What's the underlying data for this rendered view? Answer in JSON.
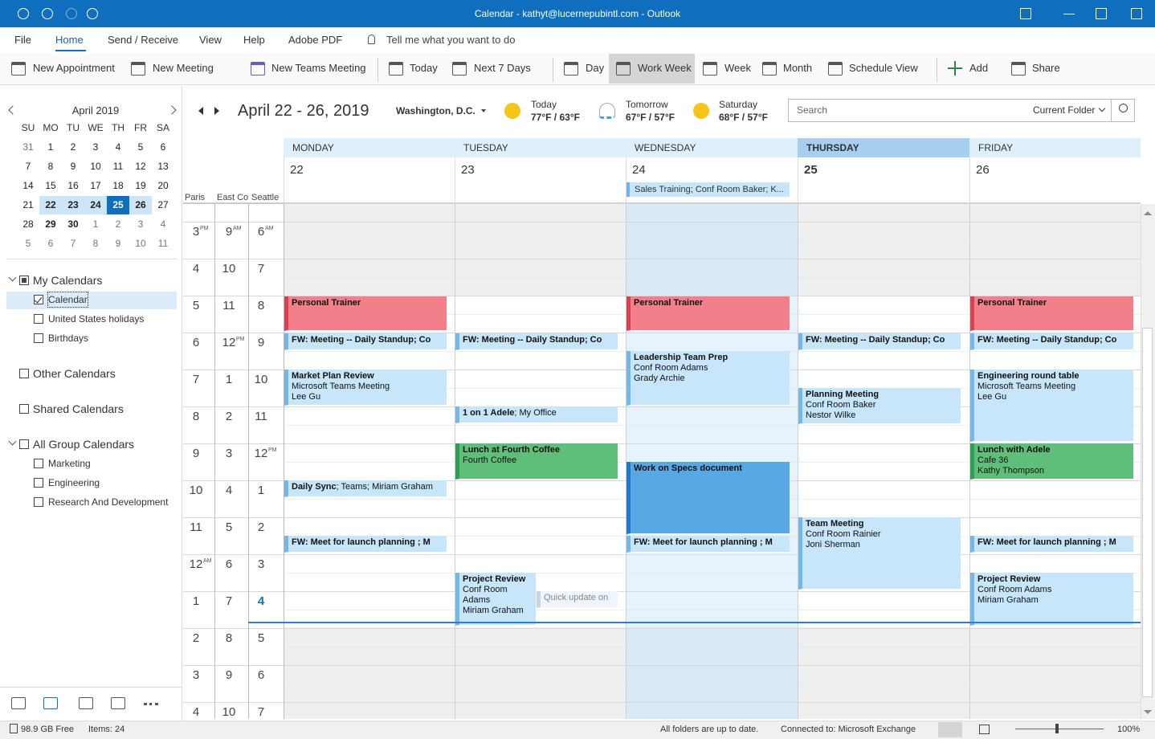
{
  "titlebar": {
    "title": "Calendar - kathyt@lucernepubintl.com - Outlook"
  },
  "menu": {
    "items": [
      "File",
      "Home",
      "Send / Receive",
      "View",
      "Help",
      "Adobe PDF"
    ],
    "tell_me": "Tell me what you want to do"
  },
  "ribbon": {
    "buttons": [
      "New Appointment",
      "New Meeting",
      "New Teams Meeting",
      "Today",
      "Next 7 Days",
      "Day",
      "Work Week",
      "Week",
      "Month",
      "Schedule View",
      "Add",
      "Share"
    ]
  },
  "mini_calendar": {
    "month": "April 2019",
    "weekdays": [
      "SU",
      "MO",
      "TU",
      "WE",
      "TH",
      "FR",
      "SA"
    ],
    "weeks": [
      [
        31,
        1,
        2,
        3,
        4,
        5,
        6
      ],
      [
        7,
        8,
        9,
        10,
        11,
        12,
        13
      ],
      [
        14,
        15,
        16,
        17,
        18,
        19,
        20
      ],
      [
        21,
        22,
        23,
        24,
        25,
        26,
        27
      ],
      [
        28,
        29,
        30,
        1,
        2,
        3,
        4
      ],
      [
        5,
        6,
        7,
        8,
        9,
        10,
        11
      ]
    ]
  },
  "folders": {
    "my_calendars": "My Calendars",
    "my_items": [
      "Calendar",
      "United States holidays",
      "Birthdays"
    ],
    "other": "Other Calendars",
    "shared": "Shared Calendars",
    "group": "All Group Calendars",
    "group_items": [
      "Marketing",
      "Engineering",
      "Research And Development"
    ]
  },
  "header": {
    "date_range": "April 22 - 26, 2019",
    "location": "Washington, D.C.",
    "weather": [
      {
        "label": "Today",
        "temp": "77°F / 63°F"
      },
      {
        "label": "Tomorrow",
        "temp": "67°F / 57°F"
      },
      {
        "label": "Saturday",
        "temp": "68°F / 57°F"
      }
    ],
    "search": "Search",
    "scope": "Current Folder"
  },
  "days": [
    {
      "name": "MONDAY",
      "date": 22
    },
    {
      "name": "TUESDAY",
      "date": 23
    },
    {
      "name": "WEDNESDAY",
      "date": 24
    },
    {
      "name": "THURSDAY",
      "date": 25
    },
    {
      "name": "FRIDAY",
      "date": 26
    }
  ],
  "all_day": "Sales Training; Conf Room Baker; K...",
  "timezones": [
    "Paris",
    "East Co",
    "Seattle"
  ],
  "time_rows": [
    [
      {
        "h": 3,
        "sup": "PM"
      },
      {
        "h": 9,
        "sup": "AM"
      },
      {
        "h": 6,
        "sup": "AM"
      }
    ],
    [
      {
        "h": 4
      },
      {
        "h": 10
      },
      {
        "h": 7
      }
    ],
    [
      {
        "h": 5
      },
      {
        "h": 11
      },
      {
        "h": 8
      }
    ],
    [
      {
        "h": 6
      },
      {
        "h": 12,
        "sup": "PM"
      },
      {
        "h": 9
      }
    ],
    [
      {
        "h": 7
      },
      {
        "h": 1
      },
      {
        "h": 10
      }
    ],
    [
      {
        "h": 8
      },
      {
        "h": 2
      },
      {
        "h": 11
      }
    ],
    [
      {
        "h": 9
      },
      {
        "h": 3
      },
      {
        "h": 12,
        "sup": "PM"
      }
    ],
    [
      {
        "h": 10
      },
      {
        "h": 4
      },
      {
        "h": 1
      }
    ],
    [
      {
        "h": 11
      },
      {
        "h": 5
      },
      {
        "h": 2
      }
    ],
    [
      {
        "h": 12,
        "sup": "AM"
      },
      {
        "h": 6
      },
      {
        "h": 3
      }
    ],
    [
      {
        "h": 1
      },
      {
        "h": 7
      },
      {
        "h": 4
      }
    ],
    [
      {
        "h": 2
      },
      {
        "h": 8
      },
      {
        "h": 5
      }
    ],
    [
      {
        "h": 3
      },
      {
        "h": 9
      },
      {
        "h": 6
      }
    ],
    [
      {
        "h": 4
      },
      {
        "h": 10
      },
      {
        "h": 7
      }
    ]
  ],
  "events": [
    {
      "title": "Personal Trainer",
      "color": "#f27f8a"
    },
    {
      "title": "FW: Meeting -- Daily Standup; Co",
      "color": "#c7e6fa"
    },
    {
      "title": "Market Plan Review",
      "details": [
        "Microsoft Teams Meeting",
        "Lee Gu"
      ],
      "color": "#c7e6fa"
    },
    {
      "title": "Daily Sync",
      "inline": "; Teams; Miriam Graham",
      "color": "#c7e6fa"
    },
    {
      "title": "FW: Meet for launch planning ; M",
      "color": "#c7e6fa"
    },
    {
      "title": "FW: Meeting -- Daily Standup; Co",
      "color": "#c7e6fa"
    },
    {
      "title": "1 on 1 Adele",
      "inline": "; My Office",
      "color": "#c7e6fa"
    },
    {
      "title": "Lunch at Fourth Coffee",
      "details": [
        "Fourth Coffee"
      ],
      "color": "#5fbf7a"
    },
    {
      "title": "Project Review",
      "details": [
        "Conf Room",
        "Adams",
        "Miriam Graham"
      ],
      "color": "#c7e6fa"
    },
    {
      "title": "Quick update on",
      "color": "#eef5fb"
    },
    {
      "title": "Personal Trainer",
      "color": "#f27f8a"
    },
    {
      "title": "Leadership Team Prep",
      "details": [
        "Conf Room Adams",
        "Grady Archie"
      ],
      "color": "#c7e6fa"
    },
    {
      "title": "Work on Specs document",
      "color": "#58a8e3"
    },
    {
      "title": "FW: Meet for launch planning ; M",
      "color": "#c7e6fa"
    },
    {
      "title": "FW: Meeting -- Daily Standup; Co",
      "color": "#c7e6fa"
    },
    {
      "title": "Planning Meeting",
      "details": [
        "Conf Room Baker",
        "Nestor Wilke"
      ],
      "color": "#c7e6fa"
    },
    {
      "title": "Team Meeting",
      "details": [
        "Conf Room Rainier",
        "Joni Sherman"
      ],
      "color": "#c7e6fa"
    },
    {
      "title": "Personal Trainer",
      "color": "#f27f8a"
    },
    {
      "title": "FW: Meeting -- Daily Standup; Co",
      "color": "#c7e6fa"
    },
    {
      "title": "Engineering round table",
      "details": [
        "Microsoft Teams Meeting",
        "Lee Gu"
      ],
      "color": "#c7e6fa"
    },
    {
      "title": "Lunch with Adele",
      "details": [
        "Cafe 36",
        "Kathy Thompson"
      ],
      "color": "#5fbf7a"
    },
    {
      "title": "FW: Meet for launch planning ; M",
      "color": "#c7e6fa"
    },
    {
      "title": "Project Review",
      "details": [
        "Conf Room Adams",
        "Miriam Graham"
      ],
      "color": "#c7e6fa"
    }
  ],
  "status": {
    "free": "98.9 GB Free",
    "items": "Items: 24",
    "sync": "All folders are up to date.",
    "connection": "Connected to: Microsoft Exchange",
    "zoom": "100%"
  }
}
